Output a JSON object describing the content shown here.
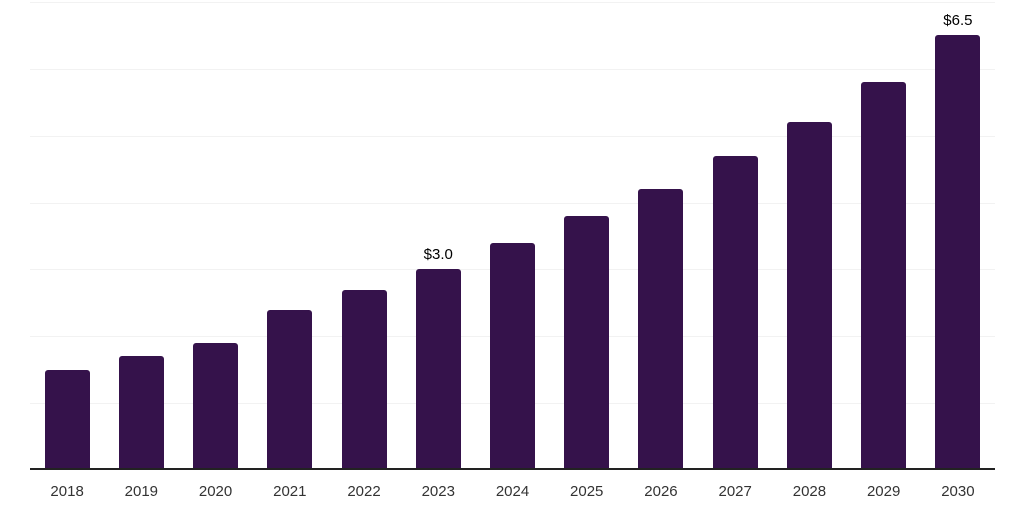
{
  "chart_data": {
    "type": "bar",
    "title": "",
    "xlabel": "",
    "ylabel": "",
    "categories": [
      "2018",
      "2019",
      "2020",
      "2021",
      "2022",
      "2023",
      "2024",
      "2025",
      "2026",
      "2027",
      "2028",
      "2029",
      "2030"
    ],
    "values": [
      1.5,
      1.7,
      1.9,
      2.4,
      2.7,
      3.0,
      3.4,
      3.8,
      4.2,
      4.7,
      5.2,
      5.8,
      6.5
    ],
    "bar_labels": [
      "",
      "",
      "",
      "",
      "",
      "$3.0",
      "",
      "",
      "",
      "",
      "",
      "",
      "$6.5"
    ],
    "ylim": [
      0,
      7
    ],
    "grid": "horizontal",
    "gridline_step": 1,
    "legend": "none",
    "colors": {
      "bar": "#35124B",
      "gridline": "#F2F2F2",
      "axis": "#222222",
      "tick_label": "#333333",
      "value_label": "#000000",
      "background": "#FFFFFF"
    }
  }
}
